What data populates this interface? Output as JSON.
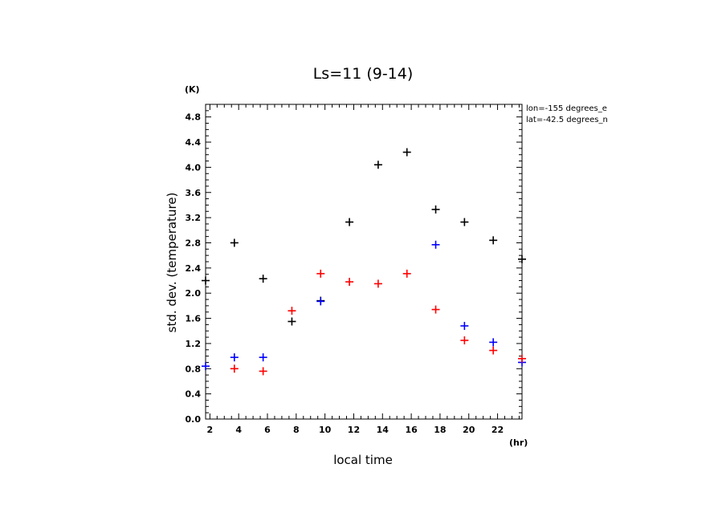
{
  "chart_data": {
    "type": "scatter",
    "title": "Ls=11 (9-14)",
    "xlabel": "local time",
    "ylabel": "std. dev. (temperature)",
    "x_unit": "(hr)",
    "y_unit": "(K)",
    "xlim": [
      1.7,
      23.7
    ],
    "ylim": [
      0,
      5.0
    ],
    "xticks": [
      2,
      4,
      6,
      8,
      10,
      12,
      14,
      16,
      18,
      20,
      22
    ],
    "yticks": [
      0.0,
      0.4,
      0.8,
      1.2,
      1.6,
      2.0,
      2.4,
      2.8,
      3.2,
      3.6,
      4.0,
      4.4,
      4.8
    ],
    "grid": false,
    "info_lines": [
      "lon=-155 degrees_e",
      "lat=-42.5 degrees_n"
    ],
    "series": [
      {
        "color": "#000000",
        "points": [
          [
            1.7,
            2.2
          ],
          [
            3.7,
            2.8
          ],
          [
            5.7,
            2.23
          ],
          [
            7.7,
            1.55
          ],
          [
            9.7,
            1.88
          ],
          [
            11.7,
            3.13
          ],
          [
            13.7,
            4.04
          ],
          [
            15.7,
            4.24
          ],
          [
            17.7,
            3.33
          ],
          [
            19.7,
            3.13
          ],
          [
            21.7,
            2.84
          ],
          [
            23.7,
            2.54
          ]
        ]
      },
      {
        "color": "#0000ff",
        "points": [
          [
            1.7,
            0.84
          ],
          [
            3.7,
            0.98
          ],
          [
            5.7,
            0.98
          ],
          [
            9.7,
            1.87
          ],
          [
            17.7,
            2.77
          ],
          [
            19.7,
            1.48
          ],
          [
            21.7,
            1.22
          ],
          [
            23.7,
            0.9
          ]
        ]
      },
      {
        "color": "#ff0000",
        "points": [
          [
            3.7,
            0.8
          ],
          [
            5.7,
            0.76
          ],
          [
            7.7,
            1.72
          ],
          [
            9.7,
            2.31
          ],
          [
            11.7,
            2.18
          ],
          [
            13.7,
            2.15
          ],
          [
            15.7,
            2.31
          ],
          [
            17.7,
            1.74
          ],
          [
            19.7,
            1.25
          ],
          [
            21.7,
            1.09
          ],
          [
            23.7,
            0.96
          ]
        ]
      }
    ]
  }
}
